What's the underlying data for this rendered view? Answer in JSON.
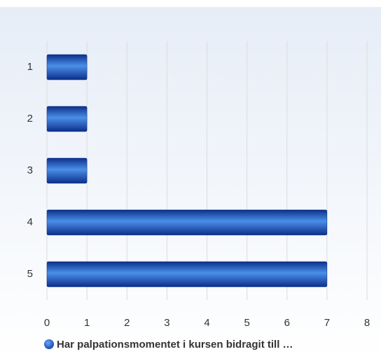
{
  "chart_data": {
    "type": "bar",
    "orientation": "horizontal",
    "categories": [
      "1",
      "2",
      "3",
      "4",
      "5"
    ],
    "series": [
      {
        "name": "Har palpationsmomentet i kursen bidragit till …",
        "color": "#2a5fc8",
        "values": [
          1,
          1,
          1,
          7,
          7
        ]
      }
    ],
    "xlim": [
      0,
      8
    ],
    "xticks": [
      0,
      1,
      2,
      3,
      4,
      5,
      6,
      7,
      8
    ],
    "grid": true,
    "legend": "bottom"
  }
}
